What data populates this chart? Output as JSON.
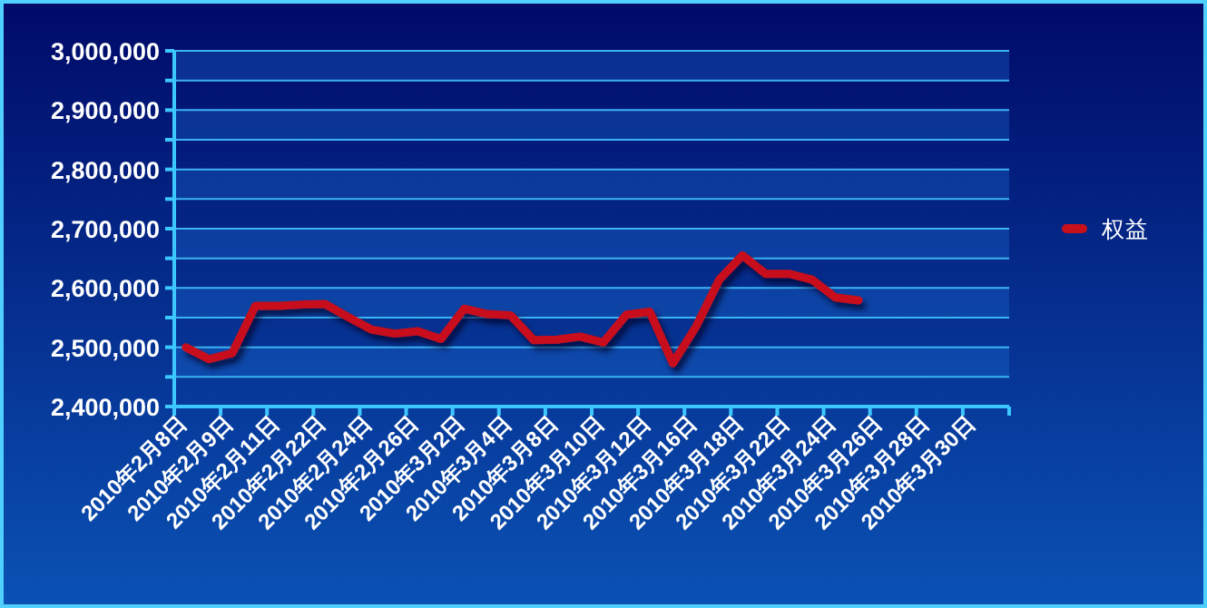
{
  "chart_data": {
    "type": "line",
    "categories": [
      "2010年2月8日",
      null,
      "2010年2月9日",
      null,
      "2010年2月11日",
      null,
      "2010年2月22日",
      null,
      "2010年2月24日",
      null,
      "2010年2月26日",
      null,
      "2010年3月2日",
      null,
      "2010年3月4日",
      null,
      "2010年3月8日",
      null,
      "2010年3月10日",
      null,
      "2010年3月12日",
      null,
      "2010年3月16日",
      null,
      "2010年3月18日",
      null,
      "2010年3月22日",
      null,
      "2010年3月24日",
      null,
      "2010年3月26日",
      null,
      "2010年3月28日",
      null,
      "2010年3月30日",
      null
    ],
    "series": [
      {
        "name": "权益",
        "color": "#c8101c",
        "values": [
          2500000,
          2480000,
          2490000,
          2570000,
          2570000,
          2572000,
          2573000,
          2551000,
          2530000,
          2523000,
          2527000,
          2514000,
          2565000,
          2556000,
          2554000,
          2512000,
          2513000,
          2518000,
          2508000,
          2555000,
          2560000,
          2473000,
          2535000,
          2614000,
          2655000,
          2624000,
          2624000,
          2614000,
          2584000,
          2579000,
          null,
          null,
          null,
          null,
          null,
          null
        ]
      }
    ],
    "ylim": [
      2400000,
      3000000
    ],
    "yticks": [
      {
        "value": 2400000,
        "label": "2,400,000"
      },
      {
        "value": 2450000,
        "label": null
      },
      {
        "value": 2500000,
        "label": "2,500,000"
      },
      {
        "value": 2550000,
        "label": null
      },
      {
        "value": 2600000,
        "label": "2,600,000"
      },
      {
        "value": 2650000,
        "label": null
      },
      {
        "value": 2700000,
        "label": "2,700,000"
      },
      {
        "value": 2750000,
        "label": null
      },
      {
        "value": 2800000,
        "label": "2,800,000"
      },
      {
        "value": 2850000,
        "label": null
      },
      {
        "value": 2900000,
        "label": "2,900,000"
      },
      {
        "value": 2950000,
        "label": null
      },
      {
        "value": 3000000,
        "label": "3,000,000"
      }
    ],
    "grid": "y",
    "legend": "right"
  }
}
